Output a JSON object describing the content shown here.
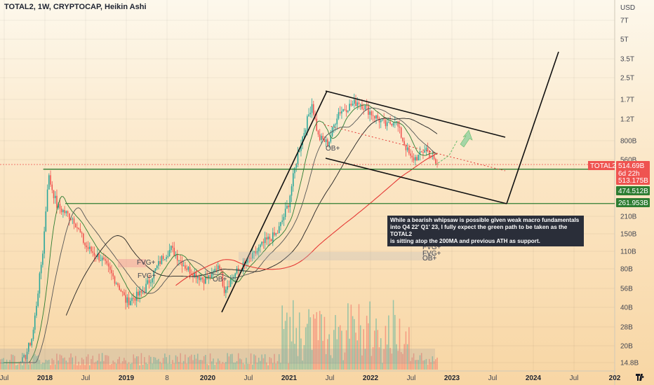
{
  "header": {
    "title": "TOTAL2, 1W, CRYPTOCAP, Heikin Ashi"
  },
  "annotation": {
    "lines": [
      "While a bearish whipsaw is possible given weak macro fundamentals",
      "into Q4 22' Q1' 23, I fully expect the green path to be taken as the TOTAL2",
      "is sitting atop the 200MA and previous ATH as support."
    ]
  },
  "chart_data": {
    "type": "candlestick",
    "title": "TOTAL2, 1W, CRYPTOCAP, Heikin Ashi",
    "y_unit": "USD",
    "y_scale": "log",
    "y_ticks": [
      "7T",
      "5T",
      "3.5T",
      "2.5T",
      "1.7T",
      "1.2T",
      "800B",
      "560B",
      "210B",
      "150B",
      "110B",
      "80B",
      "56B",
      "40B",
      "28B",
      "20B",
      "14.8B"
    ],
    "x_ticks": [
      {
        "label": "Jul",
        "bold": false
      },
      {
        "label": "2018",
        "bold": true
      },
      {
        "label": "Jul",
        "bold": false
      },
      {
        "label": "2019",
        "bold": true
      },
      {
        "label": "8",
        "bold": false
      },
      {
        "label": "2020",
        "bold": true
      },
      {
        "label": "Jul",
        "bold": false
      },
      {
        "label": "2021",
        "bold": true
      },
      {
        "label": "Jul",
        "bold": false
      },
      {
        "label": "2022",
        "bold": true
      },
      {
        "label": "Jul",
        "bold": false
      },
      {
        "label": "2023",
        "bold": true
      },
      {
        "label": "Jul",
        "bold": false
      },
      {
        "label": "2024",
        "bold": true
      },
      {
        "label": "Jul",
        "bold": false
      },
      {
        "label": "202",
        "bold": true
      }
    ],
    "price_badges": [
      {
        "label": "TOTAL2",
        "value": "514.69B",
        "sub": "6d 22h",
        "color": "#ef5350"
      },
      {
        "label": "",
        "value": "513.175B",
        "color": "#ef5350"
      },
      {
        "label": "",
        "value": "474.512B",
        "color": "#2e7d32"
      },
      {
        "label": "",
        "value": "261.953B",
        "color": "#2e7d32"
      }
    ],
    "levels": [
      {
        "name": "previous ATH support",
        "value": 474.5,
        "color": "#2e7d32"
      },
      {
        "name": "support",
        "value": 262,
        "color": "#2e7d32"
      }
    ],
    "chart_labels": [
      "FVG+",
      "FVG+",
      "OB+",
      "FVG+",
      "FVG+",
      "OB+",
      "OB+"
    ],
    "colors": {
      "up": "#26a69a",
      "down": "#ef5350",
      "ma200": "#e53935",
      "channel": "#111111",
      "level": "#2e7d32"
    },
    "note": ""
  }
}
